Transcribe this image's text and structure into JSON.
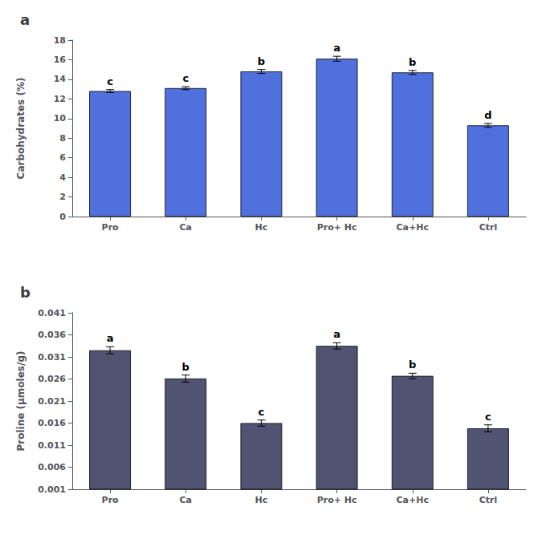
{
  "chart_data": [
    {
      "type": "bar",
      "title": "a",
      "categories": [
        "Pro",
        "Ca",
        "Hc",
        "Pro+ Hc",
        "Ca+Hc",
        "Ctrl"
      ],
      "values": [
        12.8,
        13.1,
        14.8,
        16.1,
        14.7,
        9.3
      ],
      "errors": [
        0.15,
        0.15,
        0.2,
        0.25,
        0.2,
        0.2
      ],
      "annotations": [
        "c",
        "c",
        "b",
        "a",
        "b",
        "d"
      ],
      "ylabel": "Carbohydrates (%)",
      "ylim": [
        0,
        18
      ],
      "yticks": [
        0,
        2,
        4,
        6,
        8,
        10,
        12,
        14,
        16,
        18
      ],
      "grid": false
    },
    {
      "type": "bar",
      "title": "b",
      "categories": [
        "Pro",
        "Ca",
        "Hc",
        "Pro+ Hc",
        "Ca+Hc",
        "Ctrl"
      ],
      "values": [
        0.0325,
        0.0261,
        0.016,
        0.0335,
        0.0267,
        0.0148
      ],
      "errors": [
        0.0008,
        0.0008,
        0.0007,
        0.0007,
        0.0006,
        0.0008
      ],
      "annotations": [
        "a",
        "b",
        "c",
        "a",
        "b",
        "c"
      ],
      "ylabel": "Proline (μmoles/g)",
      "ylim": [
        0.001,
        0.041
      ],
      "yticks": [
        0.001,
        0.006,
        0.011,
        0.016,
        0.021,
        0.026,
        0.031,
        0.036,
        0.041
      ],
      "grid": false
    }
  ]
}
